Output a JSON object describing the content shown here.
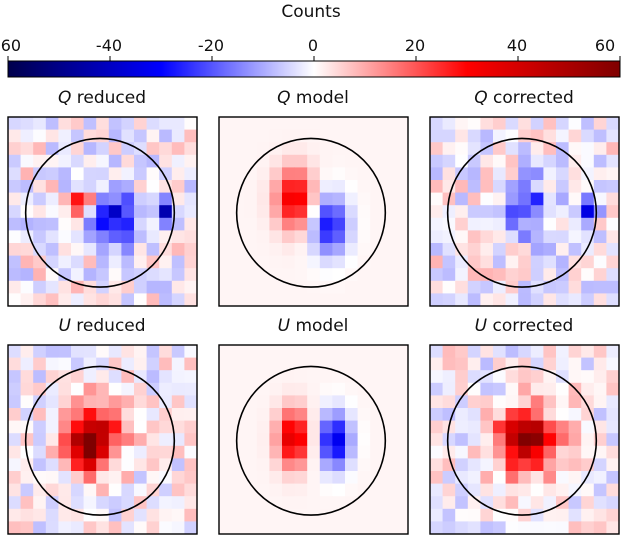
{
  "chart_data": {
    "type": "heatmap",
    "colorbar": {
      "label": "Counts",
      "ticks": [
        "-60",
        "-40",
        "-20",
        "0",
        "20",
        "40",
        "60"
      ],
      "range": [
        -60,
        60
      ],
      "colormap": "seismic",
      "colors": {
        "min": "#00004c",
        "low": "#0000ff",
        "mid": "#ffffff",
        "high": "#ff0000",
        "max": "#7f0000"
      }
    },
    "grid_size": 15,
    "circle": {
      "center": [
        7.3,
        7.6
      ],
      "radius": 5.9
    },
    "panels": [
      {
        "row": 0,
        "col": 0,
        "stokes": "Q",
        "kind": "reduced",
        "blobs": [
          {
            "cx": 8.4,
            "cy": 8.0,
            "sx": 1.5,
            "sy": 1.5,
            "amp": -34
          },
          {
            "cx": 5.8,
            "cy": 6.8,
            "sx": 0.55,
            "sy": 0.55,
            "amp": 42
          },
          {
            "cx": 12.4,
            "cy": 7.6,
            "sx": 0.5,
            "sy": 0.6,
            "amp": -38
          }
        ],
        "noise": 9,
        "seed": 11
      },
      {
        "row": 0,
        "col": 1,
        "stokes": "Q",
        "kind": "model",
        "blobs": [
          {
            "cx": 6.0,
            "cy": 6.5,
            "sx": 1.0,
            "sy": 1.6,
            "amp": 34
          },
          {
            "cx": 8.8,
            "cy": 8.6,
            "sx": 1.0,
            "sy": 1.6,
            "amp": -30
          }
        ],
        "noise": 0,
        "seed": 0
      },
      {
        "row": 0,
        "col": 2,
        "stokes": "Q",
        "kind": "corrected",
        "blobs": [
          {
            "cx": 7.9,
            "cy": 7.2,
            "sx": 1.4,
            "sy": 1.6,
            "amp": -22
          },
          {
            "cx": 12.4,
            "cy": 7.6,
            "sx": 0.5,
            "sy": 0.6,
            "amp": -40
          }
        ],
        "noise": 9,
        "seed": 23
      },
      {
        "row": 1,
        "col": 0,
        "stokes": "U",
        "kind": "reduced",
        "blobs": [
          {
            "cx": 6.6,
            "cy": 7.4,
            "sx": 1.5,
            "sy": 1.8,
            "amp": 52
          },
          {
            "cx": 6.4,
            "cy": 8.6,
            "sx": 0.6,
            "sy": 0.6,
            "amp": 28
          }
        ],
        "noise": 8,
        "seed": 37
      },
      {
        "row": 1,
        "col": 1,
        "stokes": "U",
        "kind": "model",
        "blobs": [
          {
            "cx": 5.9,
            "cy": 7.4,
            "sx": 0.85,
            "sy": 1.5,
            "amp": 38
          },
          {
            "cx": 9.2,
            "cy": 7.6,
            "sx": 0.85,
            "sy": 1.5,
            "amp": -36
          }
        ],
        "noise": 0,
        "seed": 0
      },
      {
        "row": 1,
        "col": 2,
        "stokes": "U",
        "kind": "corrected",
        "blobs": [
          {
            "cx": 7.6,
            "cy": 7.6,
            "sx": 1.6,
            "sy": 1.7,
            "amp": 52
          },
          {
            "cx": 8.2,
            "cy": 7.0,
            "sx": 0.6,
            "sy": 0.6,
            "amp": 22
          }
        ],
        "noise": 8,
        "seed": 41
      }
    ]
  },
  "titles": [
    {
      "stokes": "Q",
      "rest": " reduced"
    },
    {
      "stokes": "Q",
      "rest": " model"
    },
    {
      "stokes": "Q",
      "rest": " corrected"
    },
    {
      "stokes": "U",
      "rest": " reduced"
    },
    {
      "stokes": "U",
      "rest": " model"
    },
    {
      "stokes": "U",
      "rest": " corrected"
    }
  ]
}
